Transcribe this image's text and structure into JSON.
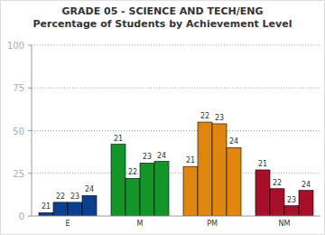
{
  "chart_data": {
    "type": "bar",
    "title": "GRADE 05 - SCIENCE AND TECH/ENG",
    "subtitle": "Percentage of Students by Achievement Level",
    "categories": [
      "E",
      "M",
      "PM",
      "NM"
    ],
    "colors": [
      "#0d3f8f",
      "#12962a",
      "#e0860e",
      "#a8102a"
    ],
    "series": [
      {
        "name": "21",
        "values": [
          2,
          42,
          29,
          27
        ]
      },
      {
        "name": "22",
        "values": [
          8,
          22,
          55,
          16
        ]
      },
      {
        "name": "23",
        "values": [
          8,
          31,
          54,
          6
        ]
      },
      {
        "name": "24",
        "values": [
          12,
          32,
          40,
          15
        ]
      }
    ],
    "ylim": [
      0,
      100
    ],
    "yticks": [
      0,
      25,
      50,
      75,
      100
    ],
    "grid": true
  }
}
